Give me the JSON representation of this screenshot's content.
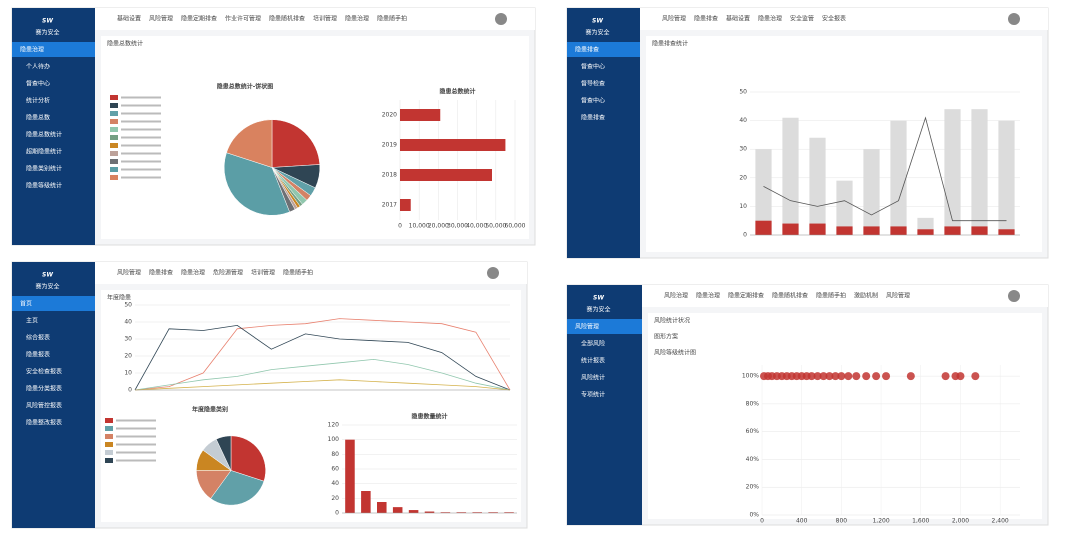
{
  "panels": [
    {
      "logo": "SW",
      "brand": "赛为安全",
      "menu": [
        "隐患治理",
        "个人待办",
        "督查中心",
        "统计分析",
        "隐患总数",
        "隐患总数统计",
        "超期隐患统计",
        "隐患类别统计",
        "隐患等级统计"
      ],
      "nav": [
        "基础设置",
        "风险管理",
        "隐患定期排查",
        "作业许可管理",
        "隐患随机排查",
        "培训管理",
        "隐患治理",
        "隐患随手拍"
      ],
      "active_nav": 6,
      "page_title": "隐患总数统计",
      "charts": [
        {
          "type": "pie",
          "title": "隐患总数统计-饼状图",
          "values": [
            24,
            8,
            3,
            2,
            2,
            1,
            1,
            1,
            2,
            36,
            20
          ],
          "colors": [
            "#c23531",
            "#2f4554",
            "#61a0a8",
            "#d48265",
            "#91c7ae",
            "#749f83",
            "#ca8622",
            "#bda29a",
            "#6e7074",
            "#5b9ea6",
            "#d9825f"
          ]
        },
        {
          "type": "hbar",
          "title": "隐患总数统计",
          "categories": [
            "2020",
            "2019",
            "2018",
            "2017"
          ],
          "values": [
            21000,
            55000,
            48000,
            5600
          ],
          "color": "#c23531",
          "xlim": [
            0,
            60000
          ],
          "xticks": [
            0,
            {
              "value": 10000,
              "label": "10,000"
            },
            {
              "value": 20000,
              "label": "20,000"
            },
            {
              "value": 30000,
              "label": "30,000"
            },
            {
              "value": 40000,
              "label": "40,000"
            },
            {
              "value": 50000,
              "label": "50,000"
            },
            {
              "value": 60000,
              "label": "60,000"
            }
          ]
        }
      ]
    },
    {
      "logo": "SW",
      "brand": "赛为安全",
      "menu": [
        "隐患排查",
        "督查中心",
        "督导检查",
        "督查中心",
        "隐患排查"
      ],
      "nav": [
        "风险管理",
        "隐患排查",
        "基础设置",
        "隐患治理",
        "安全监管",
        "安全报表"
      ],
      "active_nav": 1,
      "page_title": "隐患排查统计",
      "charts": [
        {
          "type": "barline",
          "categories": [
            null,
            null,
            null,
            null,
            null,
            null,
            null,
            null,
            null,
            null
          ],
          "ylim": [
            0,
            50
          ],
          "yticks": [
            0,
            10,
            20,
            30,
            40,
            50
          ],
          "series": [
            {
              "color": "#dcdcdc",
              "values": [
                30,
                41,
                34,
                19,
                30,
                40,
                6,
                44,
                44,
                40
              ]
            },
            {
              "color": "#c23531",
              "values": [
                5,
                4,
                4,
                3,
                3,
                3,
                2,
                3,
                3,
                2
              ]
            },
            {
              "color": "#555555",
              "values": [
                17,
                12,
                10,
                12,
                7,
                12,
                41,
                5,
                5,
                5
              ]
            }
          ]
        }
      ]
    },
    {
      "logo": "SW",
      "brand": "赛为安全",
      "menu": [
        "首页",
        "主页",
        "综合报表",
        "隐患报表",
        "安全检查报表",
        "隐患分类报表",
        "风险管控报表",
        "隐患整改报表"
      ],
      "nav": [
        "风险管理",
        "隐患排查",
        "隐患治理",
        "危险源管理",
        "培训管理",
        "隐患随手拍"
      ],
      "active_nav": -1,
      "page_title": "年度隐患",
      "charts": [
        {
          "type": "lines",
          "categories": [
            null,
            null,
            null,
            null,
            null,
            null,
            null,
            null,
            null,
            null,
            null,
            null
          ],
          "ylim": [
            0,
            50
          ],
          "yticks": [
            0,
            10,
            20,
            30,
            40,
            50
          ],
          "series": [
            {
              "color": "#e8816f",
              "values": [
                0,
                2,
                10,
                36,
                38,
                39,
                42,
                41,
                40,
                39,
                34,
                0
              ]
            },
            {
              "color": "#2f4554",
              "values": [
                0,
                36,
                35,
                38,
                24,
                33,
                30,
                29,
                28,
                22,
                8,
                0
              ]
            },
            {
              "color": "#91c7ae",
              "values": [
                0,
                3,
                6,
                8,
                12,
                14,
                16,
                18,
                15,
                10,
                4,
                0
              ]
            },
            {
              "color": "#d4b24c",
              "values": [
                0,
                1,
                2,
                3,
                4,
                5,
                6,
                5,
                4,
                3,
                2,
                0
              ]
            }
          ]
        },
        {
          "type": "pie",
          "title": "年度隐患类别",
          "values": [
            30,
            30,
            15,
            10,
            8,
            7
          ],
          "colors": [
            "#c23531",
            "#61a0a8",
            "#d48265",
            "#ca8622",
            "#c4ccd3",
            "#2f4554"
          ]
        },
        {
          "type": "bar",
          "title": "隐患数量统计",
          "categories": [
            null,
            null,
            null,
            null,
            null,
            null,
            null,
            null,
            null,
            null,
            null
          ],
          "values": [
            100,
            30,
            15,
            8,
            4,
            2,
            1,
            1,
            1,
            1,
            1
          ],
          "color": "#c23531",
          "ylim": [
            0,
            120
          ],
          "yticks": [
            0,
            20,
            40,
            60,
            80,
            100,
            120
          ]
        }
      ]
    },
    {
      "logo": "SW",
      "brand": "赛为安全",
      "menu": [
        "风险管理",
        "全部风险",
        "统计报表",
        "风险统计",
        "专项统计"
      ],
      "nav": [
        "风险治理",
        "隐患治理",
        "隐患定期排查",
        "隐患随机排查",
        "隐患随手拍",
        "激励机制",
        "风险管理"
      ],
      "active_nav": 6,
      "page_title": "风险统计状况",
      "side_list": [
        "图形方案",
        "风险等级统计图"
      ],
      "charts": [
        {
          "type": "scatter",
          "color": "#c23531",
          "xlim": [
            0,
            2600
          ],
          "ylim": [
            0,
            108
          ],
          "xticks": [
            0,
            400,
            800,
            {
              "value": 1200,
              "label": "1,200"
            },
            {
              "value": 1600,
              "label": "1,600"
            },
            {
              "value": 2000,
              "label": "2,000"
            },
            {
              "value": 2400,
              "label": "2,400"
            }
          ],
          "yticks": [
            {
              "value": 0,
              "label": "0%"
            },
            {
              "value": 20,
              "label": "20%"
            },
            {
              "value": 40,
              "label": "40%"
            },
            {
              "value": 60,
              "label": "60%"
            },
            {
              "value": 80,
              "label": "80%"
            },
            {
              "value": 100,
              "label": "100%"
            }
          ],
          "x": [
            20,
            60,
            100,
            150,
            200,
            250,
            300,
            350,
            400,
            450,
            500,
            560,
            620,
            680,
            740,
            800,
            870,
            950,
            1050,
            1150,
            1250,
            1500,
            1850,
            1950,
            2000,
            2150
          ],
          "y": [
            100,
            100,
            100,
            100,
            100,
            100,
            100,
            100,
            100,
            100,
            100,
            100,
            100,
            100,
            100,
            100,
            100,
            100,
            100,
            100,
            100,
            100,
            100,
            100,
            100,
            100
          ]
        }
      ]
    }
  ]
}
